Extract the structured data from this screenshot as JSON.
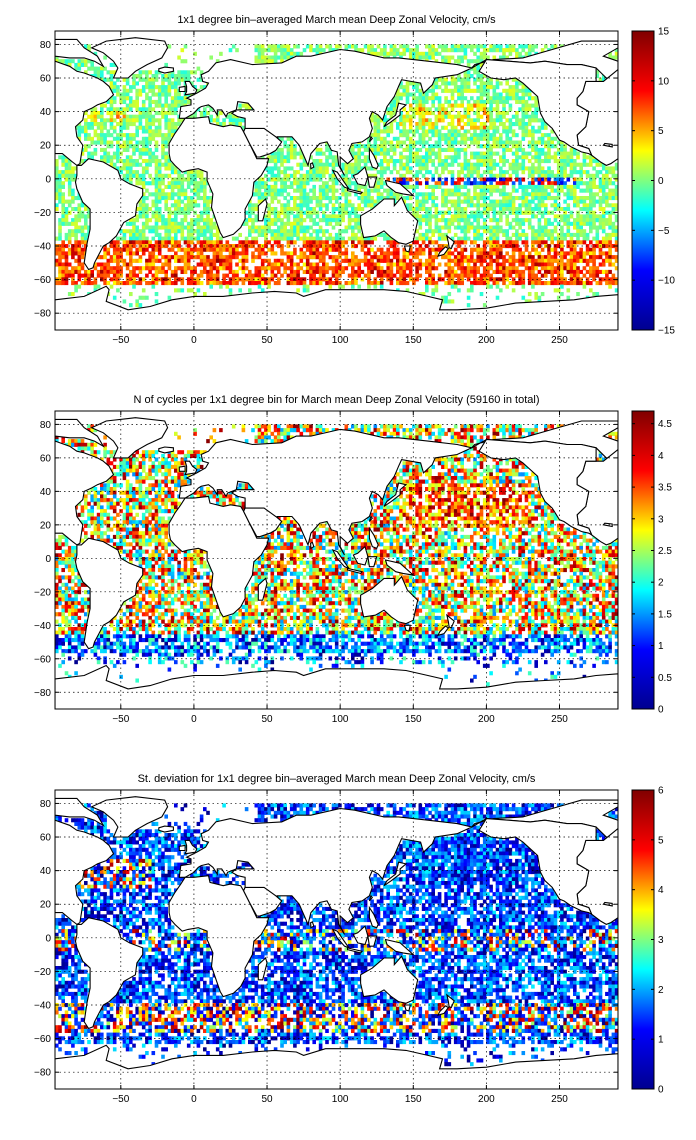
{
  "colormap": "jet",
  "colormap_stops": [
    "#00008f",
    "#0000ff",
    "#00ffff",
    "#ffff00",
    "#ff0000",
    "#800000"
  ],
  "map_fill": "#ffffff",
  "coast_color": "#000000",
  "chart_data": [
    {
      "type": "heatmap",
      "title": "1x1 degree bin–averaged March mean Deep Zonal Velocity, cm/s",
      "xlabel": "",
      "ylabel": "",
      "xlim": [
        -95,
        290
      ],
      "ylim": [
        -90,
        88
      ],
      "xticks": [
        -50,
        0,
        50,
        100,
        150,
        200,
        250
      ],
      "yticks": [
        80,
        60,
        40,
        20,
        0,
        -20,
        -40,
        -60,
        -80
      ],
      "grid": true,
      "colorbar": {
        "range": [
          -15,
          15
        ],
        "ticks": [
          15,
          10,
          5,
          0,
          -5,
          -10,
          -15
        ],
        "tick_labels": [
          "15",
          "10",
          "5",
          "0",
          "−5",
          "−10",
          "−15"
        ]
      }
    },
    {
      "type": "heatmap",
      "title": "N of cycles per 1x1 degree bin for March mean Deep Zonal Velocity (59160 in total)",
      "xlabel": "",
      "ylabel": "",
      "xlim": [
        -95,
        290
      ],
      "ylim": [
        -90,
        88
      ],
      "xticks": [
        -50,
        0,
        50,
        100,
        150,
        200,
        250
      ],
      "yticks": [
        80,
        60,
        40,
        20,
        0,
        -20,
        -40,
        -60,
        -80
      ],
      "grid": true,
      "colorbar": {
        "range": [
          0,
          4.7
        ],
        "ticks": [
          4.5,
          4,
          3.5,
          3,
          2.5,
          2,
          1.5,
          1,
          0.5,
          0
        ],
        "tick_labels": [
          "4.5",
          "4",
          "3.5",
          "3",
          "2.5",
          "2",
          "1.5",
          "1",
          "0.5",
          "0"
        ]
      }
    },
    {
      "type": "heatmap",
      "title": "St. deviation for 1x1 degree bin–averaged March mean Deep Zonal Velocity, cm/s",
      "xlabel": "",
      "ylabel": "",
      "xlim": [
        -95,
        290
      ],
      "ylim": [
        -90,
        88
      ],
      "xticks": [
        -50,
        0,
        50,
        100,
        150,
        200,
        250
      ],
      "yticks": [
        80,
        60,
        40,
        20,
        0,
        -20,
        -40,
        -60,
        -80
      ],
      "grid": true,
      "colorbar": {
        "range": [
          0,
          6
        ],
        "ticks": [
          6,
          5,
          4,
          3,
          2,
          1,
          0
        ],
        "tick_labels": [
          "6",
          "5",
          "4",
          "3",
          "2",
          "1",
          "0"
        ]
      }
    }
  ]
}
